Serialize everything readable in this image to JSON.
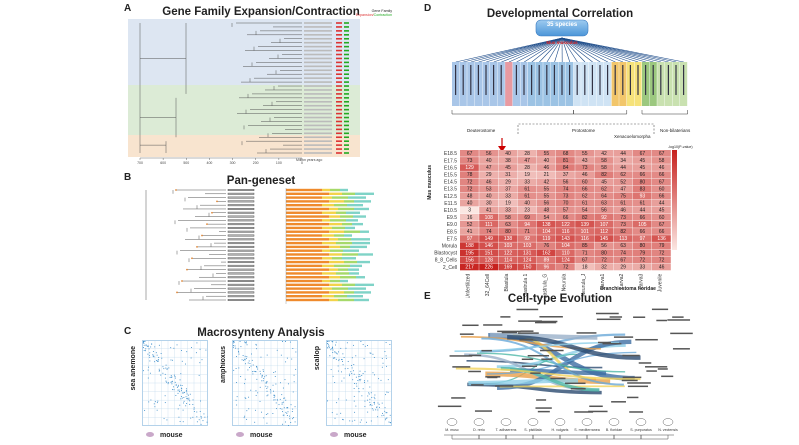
{
  "panels": {
    "A": {
      "letter": "A",
      "title": "Gene Family Expansion/Contraction",
      "legend": {
        "title": "Gene Family",
        "expansion": "Expansion/",
        "contraction": "Contraction"
      },
      "axis_ticks": [
        "700",
        "600",
        "500",
        "400",
        "300",
        "200",
        "100",
        "0"
      ],
      "axis_label": "Million years ago"
    },
    "B": {
      "letter": "B",
      "title": "Pan-geneset"
    },
    "C": {
      "letter": "C",
      "title": "Macrosynteny Analysis",
      "species": [
        "sea anemone",
        "amphioxus",
        "scallop"
      ],
      "bottom_label": "mouse"
    },
    "D": {
      "letter": "D",
      "title": "Developmental Correlation",
      "species_box": "35 species",
      "ancestor_label": "Mus musculus",
      "groups": [
        "Deuterostome",
        "Protostome",
        "Xenacoelomorpha",
        "Non-bilaterians"
      ],
      "y_axis_label": "Mus musculus",
      "x_axis_label": "Branchiostoma floridae",
      "colorbar_label": "-log10(P-value)",
      "rows": [
        "E18.5",
        "E17.5",
        "E16.5",
        "E15.5",
        "E14.5",
        "E13.5",
        "E12.5",
        "E11.5",
        "E10.5",
        "E9.5",
        "E9.0",
        "E8.5",
        "E7.5",
        "Morula",
        "Blastocyst",
        "8_8_Cells",
        "2_Cell"
      ],
      "cols": [
        "Egg_Unfertilized",
        "32_64Cell",
        "Blastula",
        "Gastrula 1",
        "Gastrula_G",
        "Neurula",
        "Neurula_J",
        "Larva1",
        "Larva2",
        "Larva3",
        "Juvenile"
      ],
      "values": [
        [
          67,
          56,
          40,
          28,
          55,
          68,
          55,
          42,
          44,
          67,
          67
        ],
        [
          73,
          40,
          38,
          47,
          40,
          81,
          43,
          58,
          34,
          45,
          58
        ],
        [
          129,
          47,
          45,
          28,
          46,
          84,
          73,
          58,
          44,
          45,
          46
        ],
        [
          78,
          29,
          31,
          19,
          21,
          37,
          46,
          82,
          62,
          66,
          66
        ],
        [
          72,
          46,
          29,
          33,
          42,
          56,
          60,
          45,
          52,
          80,
          67
        ],
        [
          72,
          53,
          37,
          61,
          55,
          74,
          66,
          62,
          47,
          83,
          60
        ],
        [
          48,
          40,
          33,
          61,
          55,
          73,
          62,
          64,
          75,
          93,
          66
        ],
        [
          40,
          30,
          19,
          40,
          56,
          70,
          61,
          63,
          61,
          61,
          44
        ],
        [
          3,
          41,
          33,
          23,
          48,
          57,
          54,
          56,
          46,
          44,
          45
        ],
        [
          16,
          108,
          58,
          69,
          54,
          66,
          82,
          92,
          73,
          66,
          60
        ],
        [
          52,
          111,
          63,
          94,
          138,
          122,
          139,
          107,
          73,
          105,
          67
        ],
        [
          41,
          74,
          80,
          71,
          104,
          116,
          101,
          112,
          82,
          66,
          66
        ],
        [
          97,
          149,
          138,
          92,
          119,
          143,
          116,
          145,
          113,
          97,
          136
        ],
        [
          188,
          146,
          103,
          103,
          76,
          104,
          85,
          56,
          63,
          80,
          79
        ],
        [
          195,
          151,
          122,
          131,
          162,
          110,
          71,
          80,
          74,
          79,
          72
        ],
        [
          156,
          128,
          114,
          124,
          89,
          124,
          67,
          72,
          67,
          72,
          72
        ],
        [
          217,
          226,
          169,
          150,
          96,
          72,
          18,
          32,
          29,
          33,
          46
        ]
      ]
    },
    "E": {
      "letter": "E",
      "title": "Cell-type Evolution",
      "species": [
        "M. musc",
        "D. rerio",
        "T. adhaerens",
        "S. pistillata",
        "H. vulgaris",
        "S. mediterranea",
        "B. floridae",
        "S. purpuratus",
        "N. vectensis"
      ]
    }
  },
  "colors": {
    "blue_band": "#dde6f2",
    "green_band": "#dcebd6",
    "orange_band": "#f8e4cf",
    "heat_low": "#fbe7e2",
    "heat_high": "#c7211e",
    "synteny_blue": "#3a8cc9"
  }
}
